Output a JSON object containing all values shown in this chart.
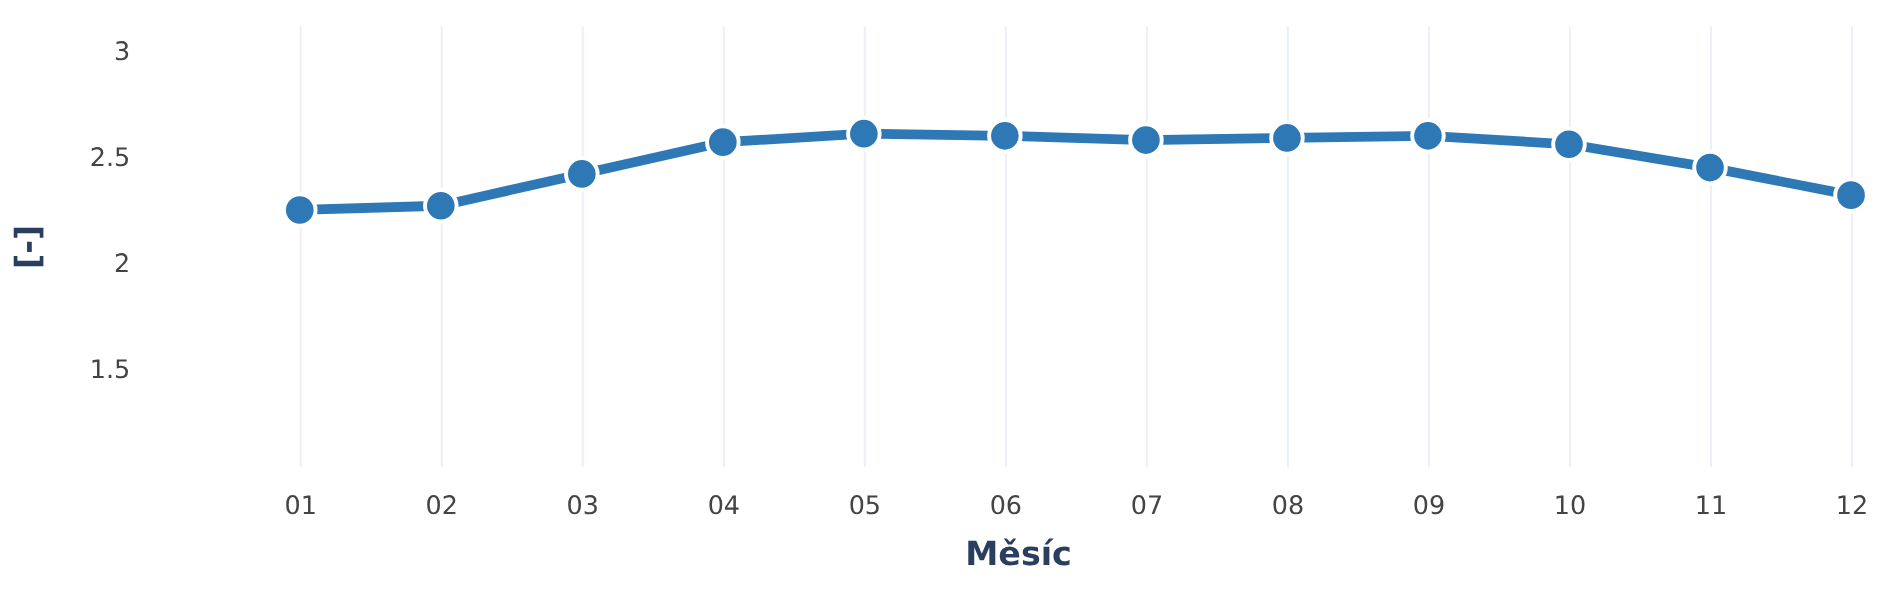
{
  "chart_data": {
    "type": "line",
    "xlabel": "Měsíc",
    "ylabel": "[-]",
    "categories": [
      "01",
      "02",
      "03",
      "04",
      "05",
      "06",
      "07",
      "08",
      "09",
      "10",
      "11",
      "12"
    ],
    "series": [
      {
        "color": "#2e78b6",
        "values": [
          2.25,
          2.27,
          2.42,
          2.57,
          2.61,
          2.6,
          2.58,
          2.59,
          2.6,
          2.56,
          2.45,
          2.32
        ]
      }
    ],
    "ylim": [
      1.04,
      3.12
    ],
    "yticks": [
      1.5,
      2,
      2.5,
      3
    ],
    "grid": "x",
    "marker": "circle",
    "line_style": "solid"
  }
}
